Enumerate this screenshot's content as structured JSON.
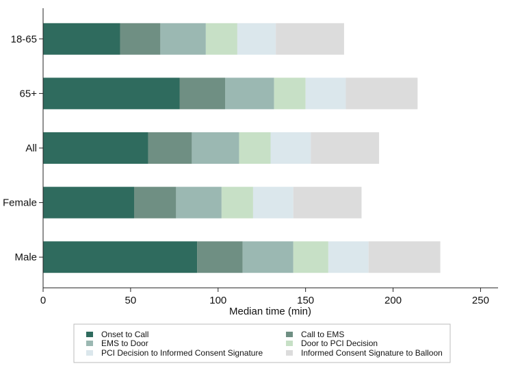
{
  "chart_data": {
    "type": "bar",
    "orientation": "horizontal",
    "stacked": true,
    "categories": [
      "18-65",
      "65+",
      "All",
      "Female",
      "Male"
    ],
    "series": [
      {
        "name": "Onset to Call",
        "color": "#2f6b5e",
        "values": [
          44,
          78,
          60,
          52,
          88
        ]
      },
      {
        "name": "Call to EMS",
        "color": "#6f8f83",
        "values": [
          23,
          26,
          25,
          24,
          26
        ]
      },
      {
        "name": "EMS to Door",
        "color": "#9bb8b2",
        "values": [
          26,
          28,
          27,
          26,
          29
        ]
      },
      {
        "name": "Door to PCI Decision",
        "color": "#c7e0c6",
        "values": [
          18,
          18,
          18,
          18,
          20
        ]
      },
      {
        "name": "PCI Decision to Informed Consent Signature",
        "color": "#dbe7ec",
        "values": [
          22,
          23,
          23,
          23,
          23
        ]
      },
      {
        "name": "Informed Consent Signature to Balloon",
        "color": "#dcdcdc",
        "values": [
          39,
          41,
          39,
          39,
          41
        ]
      }
    ],
    "xlabel": "Median time (min)",
    "ylabel": "",
    "xlim": [
      0,
      260
    ],
    "xticks": [
      0,
      50,
      100,
      150,
      200,
      250
    ],
    "grid": false,
    "legend_position": "bottom"
  }
}
